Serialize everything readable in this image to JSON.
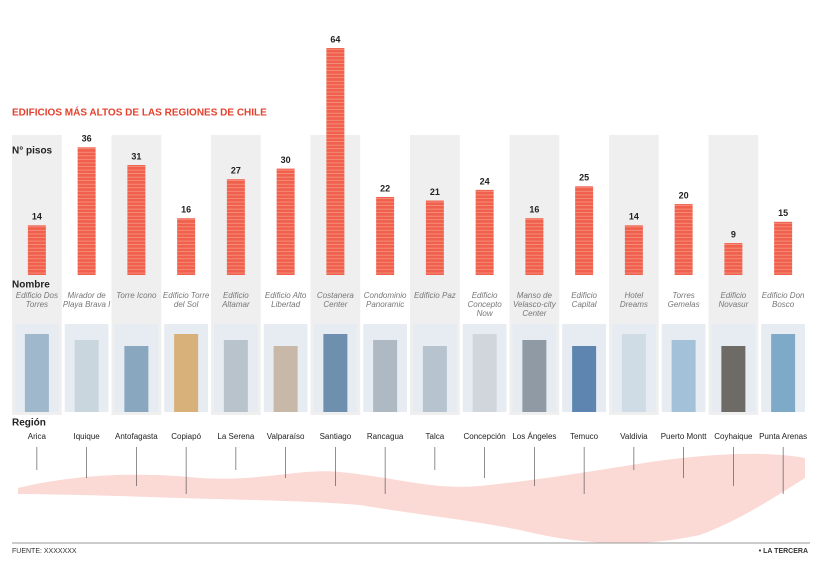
{
  "chart_data": {
    "type": "bar",
    "title": "EDIFICIOS MÁS ALTOS DE LAS REGIONES DE CHILE",
    "value_axis_label": "N° pisos",
    "category_axis_label": "Nombre",
    "region_label": "Región",
    "categories": [
      "Edificio Dos Torres",
      "Mirador de Playa Brava I",
      "Torre Icono",
      "Edificio Torre del Sol",
      "Edificio Altamar",
      "Edificio Alto Libertad",
      "Costanera Center",
      "Condominio Panoramic",
      "Edificio Paz",
      "Edificio Concepto Now",
      "Manso de Velasco-city Center",
      "Edificio Capital",
      "Hotel Dreams",
      "Torres Gemelas",
      "Edificio Novasur",
      "Edificio Don Bosco"
    ],
    "values": [
      14,
      36,
      31,
      16,
      27,
      30,
      64,
      22,
      21,
      24,
      16,
      25,
      14,
      20,
      9,
      15
    ],
    "regions": [
      "Arica",
      "Iquique",
      "Antofagasta",
      "Copiapó",
      "La Serena",
      "Valparaíso",
      "Santiago",
      "Rancagua",
      "Talca",
      "Concepción",
      "Los Ángeles",
      "Temuco",
      "Valdivia",
      "Puerto Montt",
      "Coyhaique",
      "Punta Arenas"
    ],
    "color": "#f0604c",
    "source": "FUENTE: XXXXXXX",
    "credit": "• LA TERCERA"
  }
}
